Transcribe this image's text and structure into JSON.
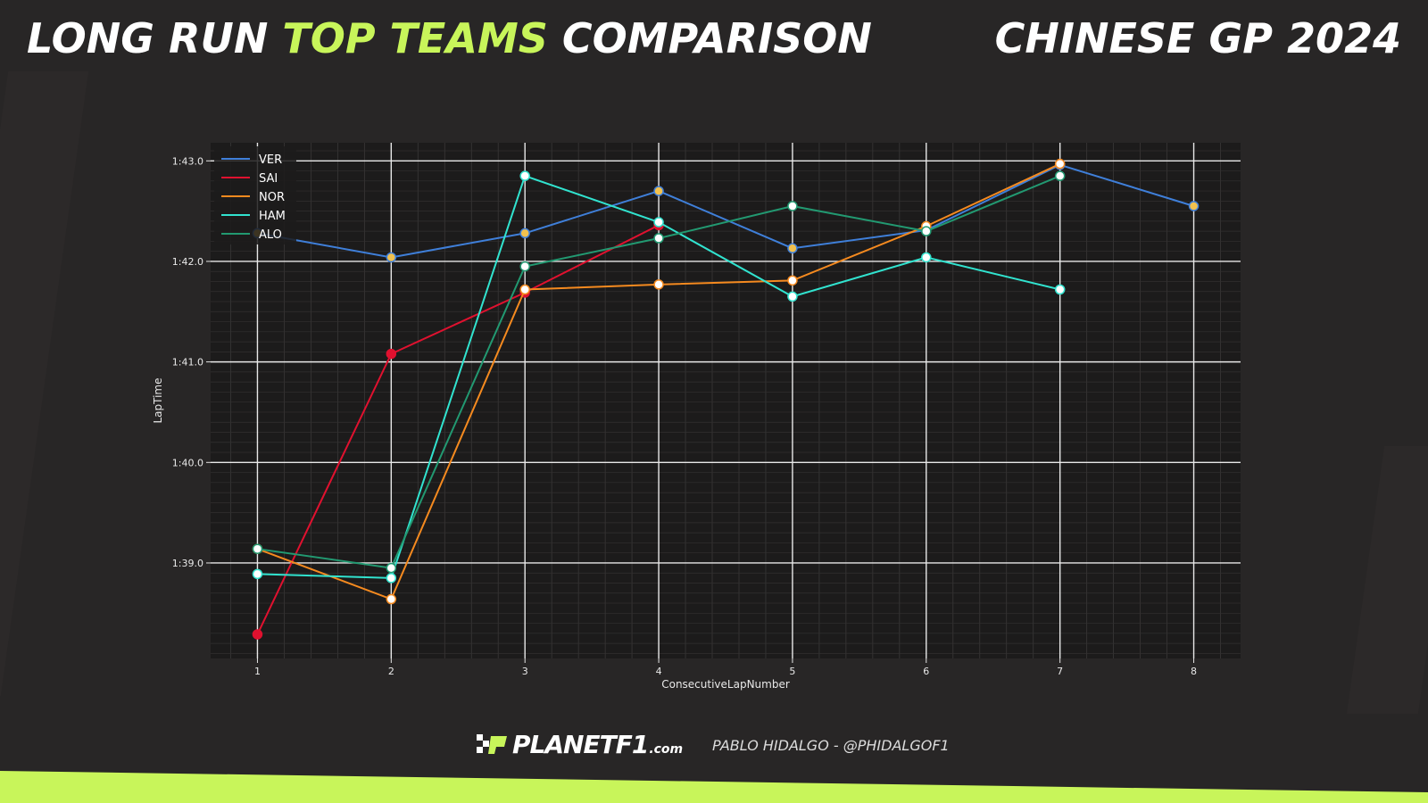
{
  "header": {
    "title_part1": "LONG RUN",
    "title_highlight": "TOP TEAMS",
    "title_part2": "COMPARISON",
    "race": "CHINESE GP 2024"
  },
  "footer": {
    "brand": "PLANETF1",
    "brand_suffix": ".com",
    "credit": "PABLO HIDALGO - @PHIDALGOF1"
  },
  "colors": {
    "accent": "#c8f55a",
    "background": "#282626",
    "plot_background": "#1c1b1b"
  },
  "chart_data": {
    "type": "line",
    "xlabel": "ConsecutiveLapNumber",
    "ylabel": "LapTime",
    "xlim": [
      0.65,
      8.35
    ],
    "ylim": [
      98.05,
      103.18
    ],
    "x_ticks": [
      1,
      2,
      3,
      4,
      5,
      6,
      7,
      8
    ],
    "y_ticks": [
      99,
      100,
      101,
      102,
      103
    ],
    "y_tick_labels": [
      "1:39.0",
      "1:40.0",
      "1:41.0",
      "1:42.0",
      "1:43.0"
    ],
    "grid": true,
    "legend_position": "top-left",
    "series": [
      {
        "name": "VER",
        "color": "#3f7fd9",
        "x": [
          1,
          2,
          3,
          4,
          5,
          6,
          7,
          8
        ],
        "y": [
          102.28,
          102.04,
          102.28,
          102.7,
          102.13,
          102.31,
          102.96,
          102.55
        ]
      },
      {
        "name": "SAI",
        "color": "#e0112f",
        "x": [
          1,
          2,
          3,
          4
        ],
        "y": [
          98.29,
          101.08,
          101.69,
          102.36
        ]
      },
      {
        "name": "NOR",
        "color": "#f58a1f",
        "x": [
          1,
          2,
          3,
          4,
          5,
          6,
          7
        ],
        "y": [
          99.14,
          98.64,
          101.72,
          101.77,
          101.81,
          102.35,
          102.97
        ]
      },
      {
        "name": "HAM",
        "color": "#31e3cf",
        "x": [
          1,
          2,
          3,
          4,
          5,
          6,
          7
        ],
        "y": [
          98.89,
          98.85,
          102.85,
          102.39,
          101.65,
          102.04,
          101.72
        ]
      },
      {
        "name": "ALO",
        "color": "#229971",
        "x": [
          1,
          2,
          3,
          4,
          5,
          6,
          7
        ],
        "y": [
          99.14,
          98.95,
          101.95,
          102.23,
          102.55,
          102.3,
          102.85
        ]
      }
    ]
  }
}
